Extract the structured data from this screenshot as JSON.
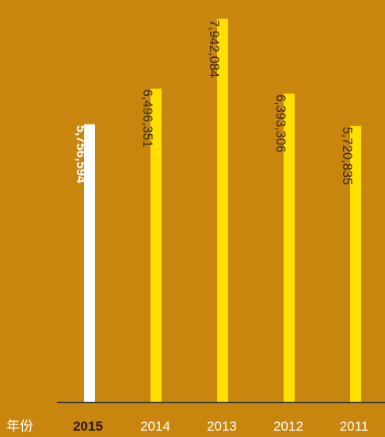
{
  "chart_data": {
    "type": "bar",
    "categories": [
      "2015",
      "2014",
      "2013",
      "2012",
      "2011"
    ],
    "values": [
      5756594,
      6496351,
      7942084,
      6393306,
      5720835
    ],
    "value_labels": [
      "5,756,594",
      "6,496,351",
      "7,942,084",
      "6,393,306",
      "5,720,835"
    ],
    "x_axis_title": "年份",
    "highlight_category": "2015",
    "ylim": [
      0,
      8200000
    ],
    "grid": false,
    "legend": "none",
    "colors": {
      "background": "#c8860f",
      "bar": "#ffe000",
      "highlight_bar": "#ffffff",
      "axis": "#3a3a3a",
      "label": "#3a2a10",
      "highlight_label": "#ffffff",
      "tick": "#ffffff",
      "highlight_tick": "#2a1a05",
      "axis_title": "#ffffff"
    }
  }
}
